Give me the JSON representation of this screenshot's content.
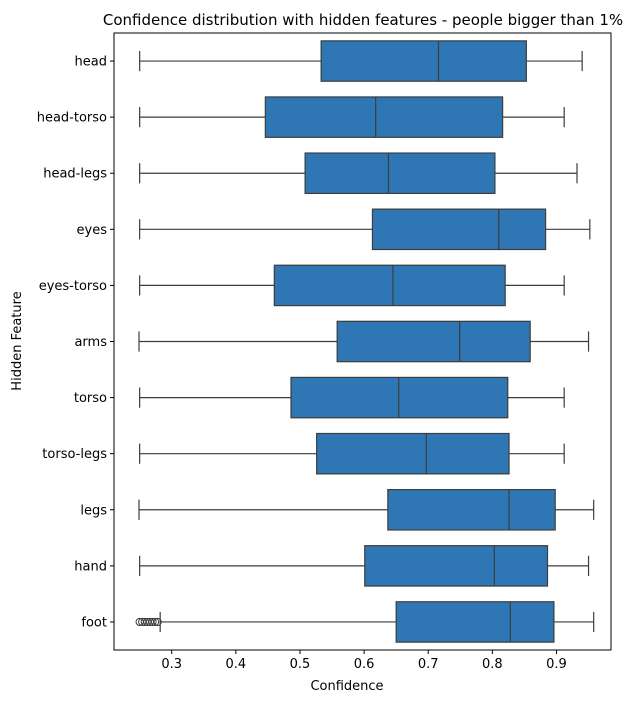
{
  "chart_data": {
    "type": "boxplot",
    "orientation": "horizontal",
    "title": "Confidence distribution with hidden features - people bigger than 1%",
    "xlabel": "Confidence",
    "ylabel": "Hidden Feature",
    "xlim": [
      0.21,
      0.985
    ],
    "xticks": [
      "0.3",
      "0.4",
      "0.5",
      "0.6",
      "0.7",
      "0.8",
      "0.9"
    ],
    "grid": false,
    "legend": "none",
    "box_color": "#2f77b4",
    "edge_color": "#3d3d3d",
    "categories": [
      "head",
      "head-torso",
      "head-legs",
      "eyes",
      "eyes-torso",
      "arms",
      "torso",
      "torso-legs",
      "legs",
      "hand",
      "foot"
    ],
    "boxes": [
      {
        "label": "head",
        "whislo": 0.25,
        "q1": 0.533,
        "med": 0.716,
        "q3": 0.853,
        "whishi": 0.94,
        "fliers": []
      },
      {
        "label": "head-torso",
        "whislo": 0.25,
        "q1": 0.446,
        "med": 0.618,
        "q3": 0.816,
        "whishi": 0.912,
        "fliers": []
      },
      {
        "label": "head-legs",
        "whislo": 0.25,
        "q1": 0.508,
        "med": 0.638,
        "q3": 0.804,
        "whishi": 0.932,
        "fliers": []
      },
      {
        "label": "eyes",
        "whislo": 0.25,
        "q1": 0.613,
        "med": 0.81,
        "q3": 0.883,
        "whishi": 0.952,
        "fliers": []
      },
      {
        "label": "eyes-torso",
        "whislo": 0.25,
        "q1": 0.46,
        "med": 0.645,
        "q3": 0.82,
        "whishi": 0.912,
        "fliers": []
      },
      {
        "label": "arms",
        "whislo": 0.249,
        "q1": 0.558,
        "med": 0.749,
        "q3": 0.859,
        "whishi": 0.95,
        "fliers": []
      },
      {
        "label": "torso",
        "whislo": 0.25,
        "q1": 0.486,
        "med": 0.654,
        "q3": 0.824,
        "whishi": 0.912,
        "fliers": []
      },
      {
        "label": "torso-legs",
        "whislo": 0.25,
        "q1": 0.526,
        "med": 0.697,
        "q3": 0.826,
        "whishi": 0.912,
        "fliers": []
      },
      {
        "label": "legs",
        "whislo": 0.249,
        "q1": 0.637,
        "med": 0.826,
        "q3": 0.898,
        "whishi": 0.958,
        "fliers": []
      },
      {
        "label": "hand",
        "whislo": 0.25,
        "q1": 0.601,
        "med": 0.803,
        "q3": 0.886,
        "whishi": 0.95,
        "fliers": []
      },
      {
        "label": "foot",
        "whislo": 0.282,
        "q1": 0.65,
        "med": 0.828,
        "q3": 0.896,
        "whishi": 0.958,
        "fliers": [
          0.25,
          0.254,
          0.258,
          0.262,
          0.266,
          0.27,
          0.274,
          0.278
        ]
      }
    ]
  }
}
